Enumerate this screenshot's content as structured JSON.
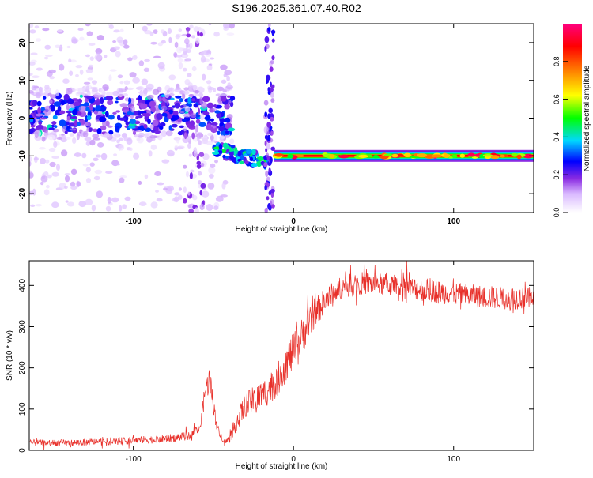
{
  "page_title": "S196.2025.361.07.40.R02",
  "chart_data": [
    {
      "type": "heatmap",
      "title": "S196.2025.361.07.40.R02",
      "xlabel": "Height of straight line (km)",
      "ylabel": "Frequency (Hz)",
      "xlim": [
        -165,
        150
      ],
      "ylim": [
        -25,
        25
      ],
      "x_ticks": [
        -100,
        0,
        100
      ],
      "y_ticks": [
        -20,
        -10,
        0,
        10,
        20
      ],
      "colorbar": {
        "label": "Normalized spectral amplitude",
        "range": [
          0,
          1
        ],
        "ticks": [
          0.0,
          0.2,
          0.4,
          0.6,
          0.8
        ],
        "colors": [
          "#ffffff",
          "#8a2be2",
          "#0000ff",
          "#00d8ff",
          "#00ff00",
          "#ffff00",
          "#ff8000",
          "#ff0000",
          "#ff007f"
        ]
      },
      "features": [
        {
          "name": "diffuse noise band",
          "x_range": [
            -165,
            -50
          ],
          "frequency_center": 1,
          "frequency_spread": 8,
          "amplitude": 0.25
        },
        {
          "name": "descending echo",
          "x_range": [
            -50,
            -15
          ],
          "frequency_start": -8,
          "frequency_end": -12,
          "amplitude": 0.4
        },
        {
          "name": "vertical spike",
          "x": -15,
          "frequency_range": [
            -25,
            25
          ],
          "amplitude": 0.2
        },
        {
          "name": "strong steady line",
          "x_range": [
            -12,
            150
          ],
          "frequency": -10,
          "amplitude": 0.95
        }
      ]
    },
    {
      "type": "line",
      "xlabel": "Height of straight line (km)",
      "ylabel": "SNR (10 * v/v)",
      "xlim": [
        -165,
        150
      ],
      "ylim": [
        0,
        460
      ],
      "x_ticks": [
        -100,
        0,
        100
      ],
      "y_ticks": [
        0,
        100,
        200,
        300,
        400
      ],
      "series": [
        {
          "name": "SNR",
          "color": "#e8302a",
          "x": [
            -165,
            -140,
            -110,
            -80,
            -65,
            -58,
            -55,
            -52,
            -50,
            -47,
            -43,
            -40,
            -35,
            -30,
            -25,
            -20,
            -15,
            -10,
            -5,
            0,
            5,
            10,
            15,
            20,
            25,
            30,
            40,
            50,
            60,
            70,
            80,
            90,
            100,
            110,
            120,
            130,
            140,
            150
          ],
          "values": [
            18,
            18,
            22,
            28,
            35,
            60,
            150,
            170,
            110,
            50,
            18,
            28,
            75,
            110,
            120,
            135,
            150,
            170,
            210,
            240,
            275,
            310,
            340,
            365,
            380,
            395,
            405,
            405,
            400,
            395,
            390,
            385,
            380,
            375,
            372,
            370,
            370,
            368
          ],
          "noise_amplitude": [
            8,
            8,
            9,
            10,
            10,
            12,
            30,
            30,
            20,
            10,
            6,
            10,
            25,
            30,
            35,
            35,
            40,
            40,
            45,
            45,
            45,
            40,
            35,
            30,
            30,
            28,
            28,
            28,
            28,
            28,
            28,
            28,
            28,
            28,
            28,
            28,
            28,
            28
          ]
        }
      ]
    }
  ]
}
